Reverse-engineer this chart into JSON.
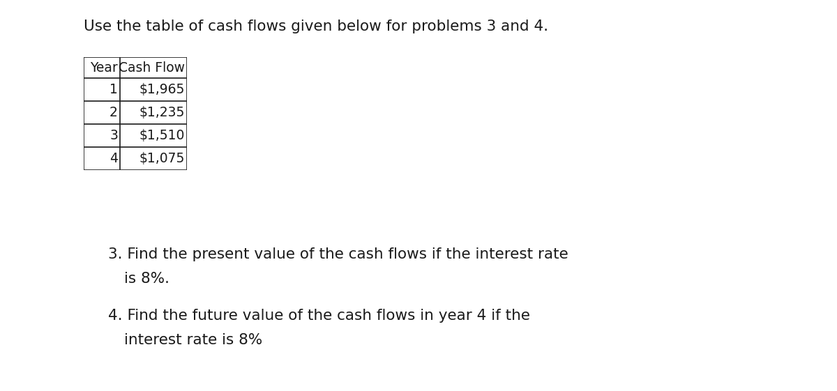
{
  "title": "Use the table of cash flows given below for problems 3 and 4.",
  "title_fontsize": 15.5,
  "table_header": [
    "Year",
    "Cash Flow"
  ],
  "table_rows": [
    [
      "1",
      "$1,965"
    ],
    [
      "2",
      "$1,235"
    ],
    [
      "3",
      "$1,510"
    ],
    [
      "4",
      "$1,075"
    ]
  ],
  "problem3_line1": "3. Find the present value of the cash flows if the interest rate",
  "problem3_line2": "is 8%.",
  "problem4_line1": "4. Find the future value of the cash flows in year 4 if the",
  "problem4_line2": "interest rate is 8%",
  "problem_fontsize": 15.5,
  "background_color": "#ffffff",
  "text_color": "#1a1a1a",
  "table_font_size": 13.5
}
